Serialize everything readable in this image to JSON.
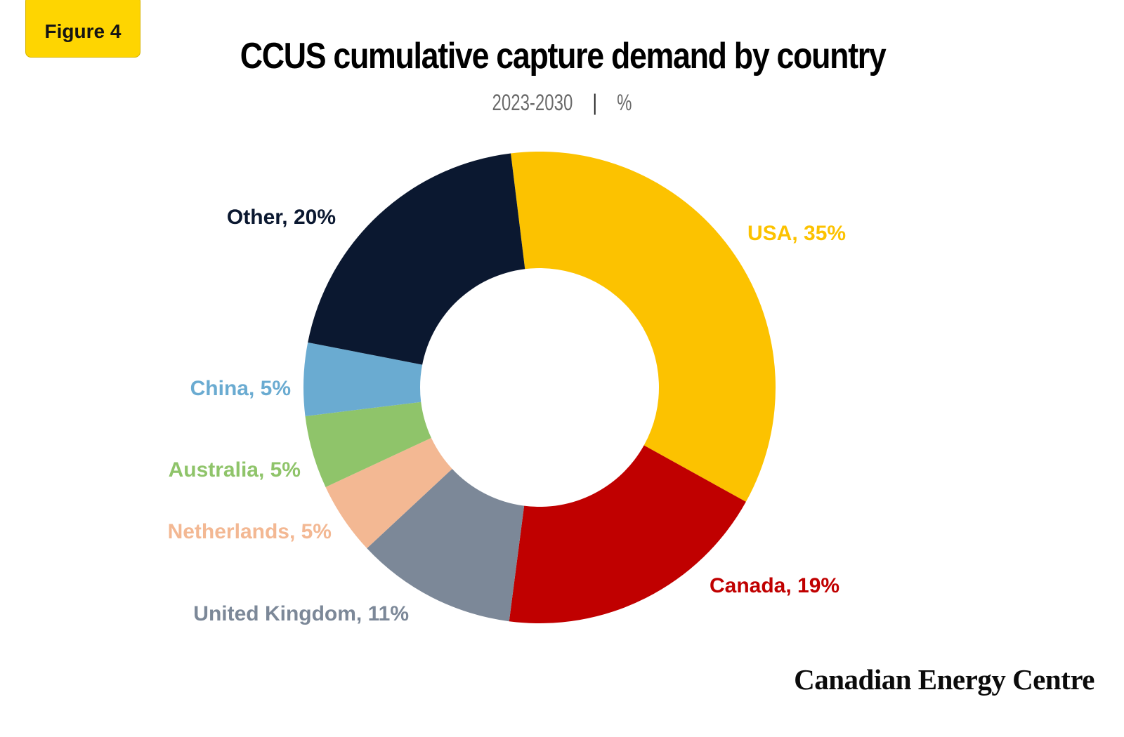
{
  "figure_label": "Figure 4",
  "title": "CCUS cumulative capture demand by country",
  "subtitle": {
    "period": "2023-2030",
    "separator": "|",
    "unit": "%"
  },
  "brand": "Canadian Energy Centre",
  "chart_data": {
    "type": "pie",
    "variant": "donut",
    "title": "CCUS cumulative capture demand by country",
    "subtitle": "2023-2030 | %",
    "categories": [
      "USA",
      "Canada",
      "United Kingdom",
      "Netherlands",
      "Australia",
      "China",
      "Other"
    ],
    "values": [
      35,
      19,
      11,
      5,
      5,
      5,
      20
    ],
    "labels": [
      "USA, 35%",
      "Canada, 19%",
      "United Kingdom, 11%",
      "Netherlands, 5%",
      "Australia, 5%",
      "China, 5%",
      "Other, 20%"
    ],
    "colors": [
      "#fcc200",
      "#c00000",
      "#7c8898",
      "#f3b893",
      "#8fc46a",
      "#6aabd1",
      "#0b1830"
    ],
    "legend": "none",
    "start_angle_deg": -7
  }
}
